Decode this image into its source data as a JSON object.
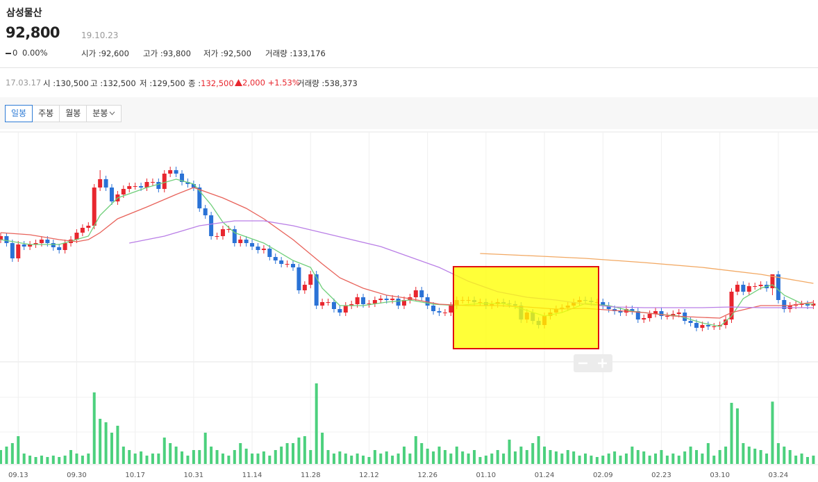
{
  "header": {
    "name": "삼성물산",
    "price": "92,800",
    "date": "19.10.23",
    "change": "0",
    "change_rate": "0.00%",
    "stats": [
      {
        "label": "시가 :",
        "value": "92,600"
      },
      {
        "label": "고가 :",
        "value": "93,800"
      },
      {
        "label": "저가 :",
        "value": "92,500"
      },
      {
        "label": "거래량 :",
        "value": "133,176"
      }
    ]
  },
  "info_bar": {
    "date": "17.03.17",
    "items": [
      {
        "label": "시 :",
        "value": "130,500"
      },
      {
        "label": "고 :",
        "value": "132,500"
      },
      {
        "label": "저 :",
        "value": "129,500"
      },
      {
        "label": "종 :",
        "value": "132,500"
      }
    ],
    "change": "2,000",
    "change_rate": "+1.53%",
    "volume_label": "거래량 :",
    "volume": "538,373"
  },
  "tabs": [
    "일봉",
    "주봉",
    "월봉",
    "분봉"
  ],
  "chart_data": {
    "type": "candlestick",
    "categories": [
      null,
      null,
      null,
      "09.13",
      null,
      null,
      null,
      null,
      null,
      null,
      null,
      null,
      null,
      "09.30",
      null,
      null,
      null,
      null,
      null,
      null,
      null,
      null,
      null,
      "10.17",
      null,
      null,
      null,
      null,
      null,
      null,
      null,
      null,
      null,
      "10.31",
      null,
      null,
      null,
      null,
      null,
      null,
      null,
      null,
      null,
      "11.14",
      null,
      null,
      null,
      null,
      null,
      null,
      null,
      null,
      null,
      "11.28",
      null,
      null,
      null,
      null,
      null,
      null,
      null,
      null,
      null,
      "12.12",
      null,
      null,
      null,
      null,
      null,
      null,
      null,
      null,
      null,
      "12.26",
      null,
      null,
      null,
      null,
      null,
      null,
      null,
      null,
      null,
      "01.10",
      null,
      null,
      null,
      null,
      null,
      null,
      null,
      null,
      null,
      "01.24",
      null,
      null,
      null,
      null,
      null,
      null,
      null,
      null,
      null,
      "02.09",
      null,
      null,
      null,
      null,
      null,
      null,
      null,
      null,
      null,
      "02.23",
      null,
      null,
      null,
      null,
      null,
      null,
      null,
      null,
      null,
      "03.10",
      null,
      null,
      null,
      null,
      null,
      null,
      null,
      null,
      null,
      "03.24",
      null,
      null,
      null,
      null,
      null,
      null
    ],
    "open": [
      137500,
      138000,
      137000,
      134800,
      136800,
      136500,
      136800,
      137000,
      137500,
      137000,
      136400,
      136000,
      137000,
      137500,
      138500,
      139200,
      139500,
      145000,
      146200,
      145000,
      143000,
      144000,
      144800,
      145200,
      145200,
      145000,
      145800,
      145800,
      144800,
      147000,
      147500,
      147000,
      145800,
      145500,
      145000,
      142000,
      141000,
      138000,
      138000,
      139000,
      139000,
      137000,
      137500,
      137000,
      136500,
      136000,
      136200,
      135000,
      134500,
      134000,
      134000,
      133500,
      130200,
      131000,
      132500,
      128000,
      128500,
      128500,
      127500,
      127000,
      128000,
      128200,
      129200,
      128200,
      128300,
      128800,
      129000,
      128800,
      129000,
      128000,
      128800,
      129200,
      130200,
      129200,
      128000,
      127200,
      127000,
      127000,
      128000,
      128800,
      128800,
      128800,
      128500,
      128500,
      128000,
      128200,
      128500,
      128300,
      128200,
      128000,
      126000,
      127000,
      125800,
      125200,
      126500,
      127000,
      127500,
      127700,
      128000,
      128500,
      128800,
      128700,
      128500,
      128500,
      128000,
      127500,
      127200,
      127000,
      127500,
      127200,
      126000,
      126200,
      126800,
      127200,
      126500,
      126500,
      126800,
      127000,
      125800,
      125500,
      124800,
      125200,
      125000,
      125000,
      125200,
      126000,
      130000,
      131000,
      130000,
      130800,
      130800,
      131000,
      130500,
      132500,
      128800,
      127500,
      128000,
      128200,
      128200,
      128000
    ],
    "high": [
      138500,
      138500,
      137500,
      137300,
      137300,
      137300,
      137500,
      138000,
      138000,
      137500,
      136900,
      137500,
      138000,
      139000,
      139700,
      140000,
      145500,
      147500,
      146700,
      145500,
      144500,
      145300,
      145700,
      145700,
      145700,
      146300,
      146300,
      146300,
      147500,
      148000,
      148000,
      147500,
      146300,
      146000,
      145500,
      142500,
      141500,
      138500,
      139500,
      139500,
      139500,
      138000,
      138000,
      137500,
      137000,
      136700,
      136700,
      135500,
      135000,
      134500,
      134500,
      134000,
      131500,
      133000,
      133000,
      129000,
      129000,
      129000,
      128000,
      128500,
      128700,
      129700,
      129700,
      128800,
      129300,
      129500,
      129500,
      129500,
      129500,
      129300,
      129700,
      130700,
      130700,
      129700,
      128500,
      127700,
      127500,
      128500,
      129300,
      129300,
      129300,
      129300,
      129000,
      129000,
      128700,
      129000,
      129000,
      128800,
      128700,
      128500,
      127500,
      127500,
      126300,
      127000,
      127500,
      128000,
      128200,
      128500,
      129000,
      129300,
      129300,
      129200,
      129000,
      129000,
      128500,
      128000,
      127700,
      128000,
      128000,
      127700,
      126700,
      127300,
      127700,
      127700,
      127000,
      127300,
      127500,
      127500,
      126300,
      126000,
      125700,
      125700,
      125500,
      125700,
      126500,
      130500,
      131500,
      131500,
      131300,
      131300,
      131500,
      131500,
      132500,
      133000,
      129300,
      128500,
      128700,
      128700,
      128700,
      128800
    ],
    "low": [
      137000,
      136500,
      134300,
      134300,
      136000,
      136000,
      136300,
      136500,
      136500,
      135900,
      135500,
      135500,
      136500,
      137000,
      138000,
      138700,
      139000,
      144500,
      144500,
      142500,
      142500,
      143500,
      144300,
      144700,
      144500,
      144500,
      145300,
      144300,
      144300,
      146500,
      146500,
      145300,
      145000,
      144500,
      141500,
      140500,
      137500,
      137500,
      137500,
      138500,
      136500,
      136500,
      136500,
      136000,
      135500,
      135500,
      134500,
      134000,
      133500,
      133500,
      133000,
      129700,
      129700,
      130500,
      127500,
      127500,
      128000,
      127000,
      126500,
      126500,
      127500,
      127700,
      127700,
      127700,
      127800,
      128300,
      128300,
      128300,
      127500,
      127500,
      128300,
      128700,
      128700,
      127500,
      126700,
      126500,
      126500,
      126500,
      127500,
      128300,
      128300,
      128000,
      128000,
      127500,
      127500,
      127700,
      127800,
      127700,
      127500,
      125500,
      125500,
      125300,
      124700,
      124700,
      126000,
      126500,
      127000,
      127200,
      127500,
      128000,
      128200,
      128000,
      128000,
      127500,
      127000,
      126700,
      126500,
      126500,
      126700,
      125500,
      125500,
      125700,
      126300,
      126000,
      126000,
      126000,
      126300,
      125300,
      125000,
      124300,
      124300,
      124500,
      124500,
      124500,
      124700,
      125500,
      129500,
      129500,
      129500,
      130300,
      130300,
      130000,
      129500,
      128300,
      127000,
      127000,
      127500,
      127700,
      127500,
      127500
    ],
    "close": [
      138000,
      137000,
      134800,
      136800,
      136500,
      136800,
      137000,
      137500,
      137000,
      136400,
      136000,
      137000,
      137500,
      138500,
      139200,
      139500,
      145000,
      146200,
      145000,
      143000,
      144000,
      144800,
      145200,
      145200,
      145000,
      145800,
      145800,
      144800,
      147000,
      147500,
      147000,
      145800,
      145500,
      145000,
      142000,
      141000,
      138000,
      138000,
      139000,
      139000,
      137000,
      137500,
      137000,
      136500,
      136000,
      136200,
      135000,
      134500,
      134000,
      134000,
      133500,
      130200,
      131000,
      132500,
      128000,
      128500,
      128500,
      127500,
      127000,
      128000,
      128200,
      129200,
      128200,
      128300,
      128800,
      129000,
      128800,
      129000,
      128000,
      128800,
      129200,
      130200,
      129200,
      128000,
      127200,
      127000,
      127000,
      128000,
      128800,
      128800,
      128800,
      128500,
      128500,
      128000,
      128200,
      128500,
      128300,
      128200,
      128000,
      126000,
      127000,
      125800,
      125200,
      126500,
      127000,
      127500,
      127700,
      128000,
      128500,
      128800,
      128700,
      128500,
      128500,
      128000,
      127500,
      127200,
      127000,
      127500,
      127200,
      126000,
      126200,
      126800,
      127200,
      126500,
      126500,
      126800,
      127000,
      125800,
      125500,
      124800,
      125200,
      125000,
      125000,
      125200,
      126000,
      130000,
      131000,
      130000,
      130800,
      130800,
      131000,
      130500,
      132500,
      128800,
      127500,
      128000,
      128200,
      128200,
      128000,
      128300
    ],
    "volume": [
      120000,
      150000,
      180000,
      240000,
      90000,
      72000,
      60000,
      72000,
      60000,
      72000,
      60000,
      72000,
      120000,
      90000,
      72000,
      90000,
      618000,
      390000,
      360000,
      270000,
      330000,
      150000,
      120000,
      90000,
      108000,
      72000,
      90000,
      90000,
      228000,
      180000,
      150000,
      108000,
      72000,
      120000,
      120000,
      270000,
      150000,
      120000,
      90000,
      72000,
      120000,
      180000,
      132000,
      90000,
      90000,
      108000,
      72000,
      120000,
      150000,
      180000,
      180000,
      228000,
      240000,
      120000,
      696000,
      270000,
      120000,
      90000,
      108000,
      90000,
      72000,
      90000,
      72000,
      60000,
      120000,
      90000,
      108000,
      72000,
      90000,
      150000,
      90000,
      240000,
      180000,
      132000,
      108000,
      150000,
      120000,
      90000,
      150000,
      108000,
      90000,
      120000,
      60000,
      72000,
      90000,
      120000,
      90000,
      210000,
      108000,
      150000,
      120000,
      180000,
      240000,
      150000,
      120000,
      108000,
      90000,
      120000,
      108000,
      72000,
      90000,
      72000,
      60000,
      72000,
      90000,
      108000,
      72000,
      90000,
      150000,
      120000,
      108000,
      72000,
      90000,
      120000,
      72000,
      90000,
      72000,
      108000,
      150000,
      120000,
      90000,
      180000,
      72000,
      120000,
      150000,
      528000,
      480000,
      180000,
      150000,
      132000,
      120000,
      90000,
      538373,
      180000,
      150000,
      120000,
      72000,
      90000,
      60000,
      72000
    ],
    "ylim": [
      120000,
      153000
    ],
    "volume_ylim": [
      0,
      900000
    ],
    "up_color": "#e8262e",
    "down_color": "#2a72d6",
    "volume_color": "#4cd07d",
    "moving_averages": [
      {
        "color": "#6fcf7a",
        "x": [
          0,
          5,
          10,
          15,
          17,
          20,
          25,
          30,
          33,
          36,
          38,
          40,
          45,
          50,
          53,
          55,
          58,
          62,
          66,
          70,
          74,
          78,
          82,
          86,
          90,
          93,
          96,
          100,
          104,
          108,
          112,
          116,
          120,
          123,
          125,
          127,
          130,
          132,
          134,
          137,
          139
        ],
        "values": [
          137500,
          136800,
          136800,
          138000,
          141000,
          143500,
          145000,
          146200,
          145500,
          142500,
          140000,
          138500,
          137000,
          134500,
          133500,
          130500,
          128000,
          128000,
          128500,
          128800,
          128200,
          128000,
          128300,
          128300,
          127300,
          126500,
          127000,
          128300,
          128000,
          127200,
          126800,
          126500,
          125500,
          125000,
          126500,
          129000,
          130500,
          131000,
          129500,
          128300,
          128200
        ]
      },
      {
        "color": "#e8625a",
        "x": [
          0,
          5,
          10,
          13,
          15,
          17,
          20,
          25,
          30,
          33,
          38,
          42,
          45,
          50,
          55,
          58,
          62,
          66,
          70,
          75,
          80,
          85,
          90,
          95,
          100,
          105,
          110,
          115,
          120,
          123,
          125,
          130,
          135,
          139
        ],
        "values": [
          138500,
          138200,
          137500,
          137200,
          137500,
          138500,
          140500,
          142200,
          144000,
          145000,
          143500,
          142000,
          140500,
          137500,
          134000,
          132000,
          130500,
          129500,
          129000,
          128200,
          128000,
          128000,
          127800,
          127500,
          127600,
          127300,
          127000,
          126500,
          126300,
          126200,
          127000,
          128000,
          128000,
          128500
        ]
      },
      {
        "color": "#b97ee6",
        "x": [
          22,
          28,
          34,
          40,
          45,
          50,
          55,
          60,
          65,
          70,
          75,
          80,
          85,
          90,
          95,
          100,
          105,
          110,
          115,
          120,
          125,
          130,
          135,
          139
        ],
        "values": [
          137000,
          138000,
          139500,
          140200,
          140200,
          139500,
          138500,
          137500,
          136500,
          135000,
          133500,
          131500,
          130000,
          129200,
          128800,
          128200,
          127800,
          127700,
          127700,
          127700,
          127800,
          127700,
          127700,
          127700
        ]
      },
      {
        "color": "#f2a862",
        "x": [
          82,
          90,
          100,
          110,
          120,
          130,
          139
        ],
        "values": [
          135500,
          135200,
          134800,
          134200,
          133500,
          132500,
          131200
        ]
      }
    ]
  }
}
